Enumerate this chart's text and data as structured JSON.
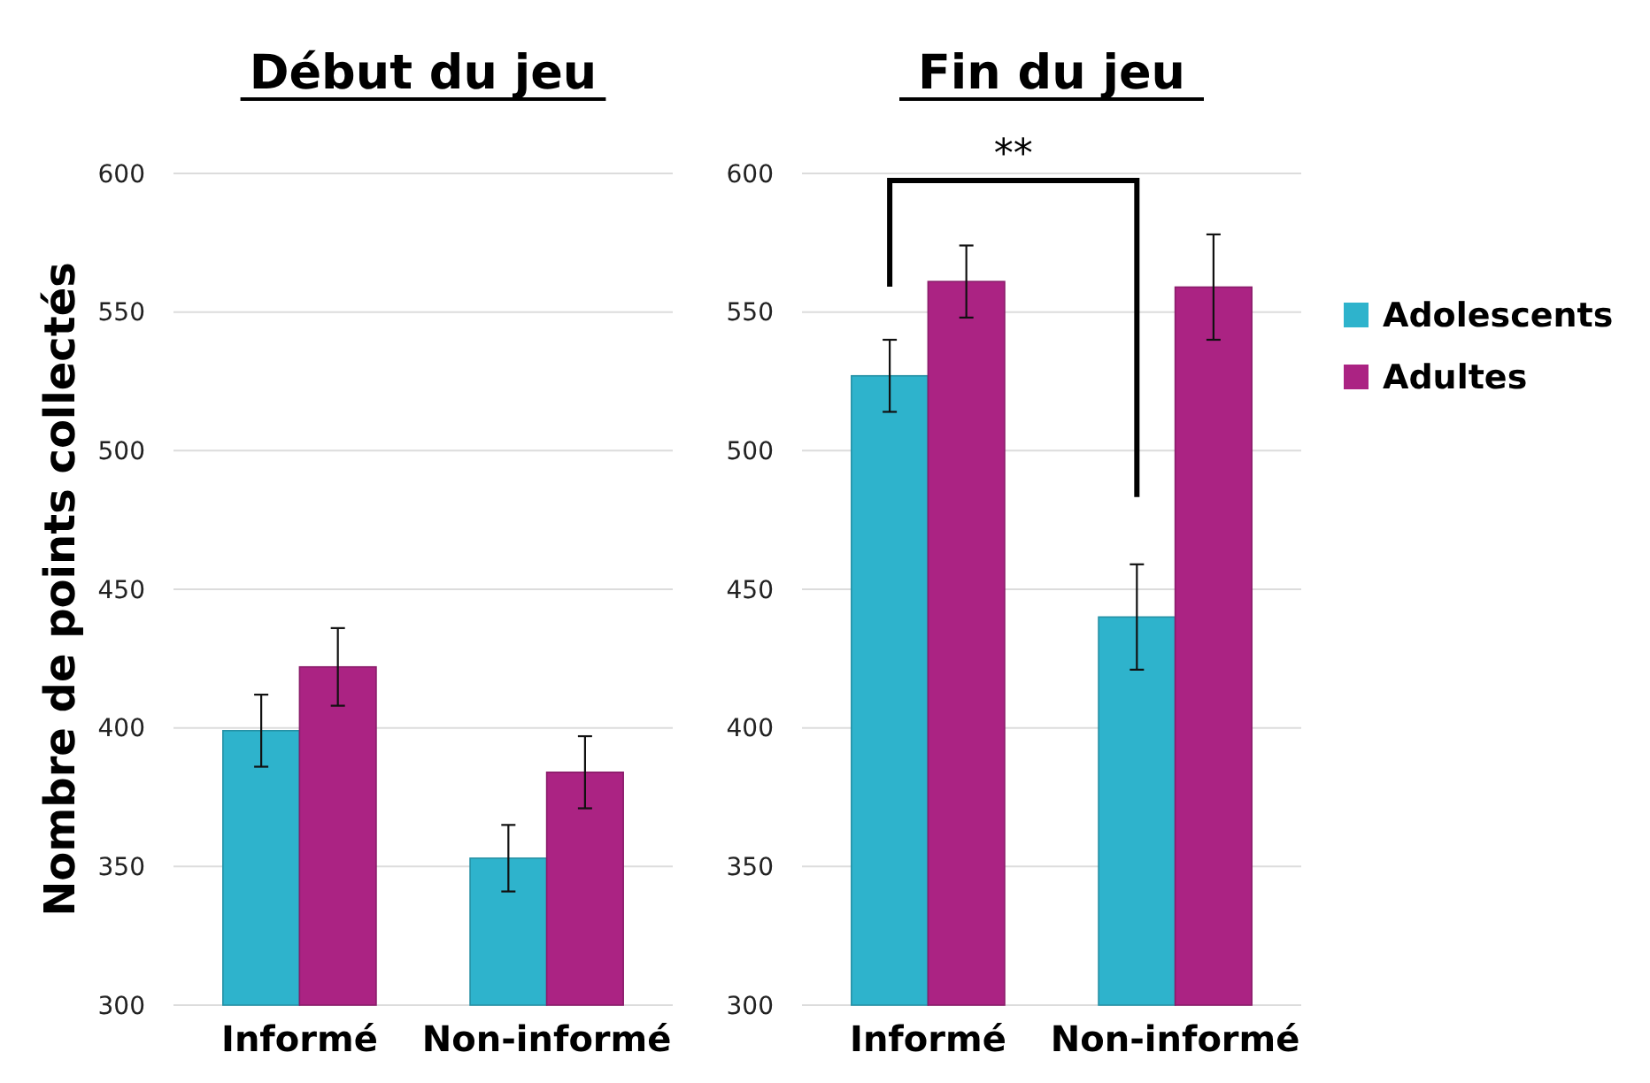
{
  "chart_data": [
    {
      "type": "bar",
      "title": "Début du jeu",
      "ylabel": "Nombre de points collectés",
      "categories": [
        "Informé",
        "Non-informé"
      ],
      "series": [
        {
          "color": "#2eb3cc",
          "values": [
            399,
            353
          ],
          "errors": [
            13,
            12
          ]
        },
        {
          "color": "#ab2383",
          "values": [
            422,
            384
          ],
          "errors": [
            14,
            13
          ]
        }
      ],
      "ylim": [
        300,
        600
      ],
      "yticks": [
        300,
        350,
        400,
        450,
        500,
        550,
        600
      ],
      "grid": "y",
      "legend": false
    },
    {
      "type": "bar",
      "title": "Fin du jeu",
      "categories": [
        "Informé",
        "Non-informé"
      ],
      "series": [
        {
          "name": "Adolescents",
          "color": "#2eb3cc",
          "values": [
            527,
            440
          ],
          "errors": [
            13,
            19
          ]
        },
        {
          "name": "Adultes",
          "color": "#ab2383",
          "values": [
            561,
            559
          ],
          "errors": [
            13,
            19
          ]
        }
      ],
      "ylim": [
        300,
        600
      ],
      "yticks": [
        300,
        350,
        400,
        450,
        500,
        550,
        600
      ],
      "grid": "y",
      "legend": "right",
      "annotations": [
        "**"
      ]
    }
  ]
}
